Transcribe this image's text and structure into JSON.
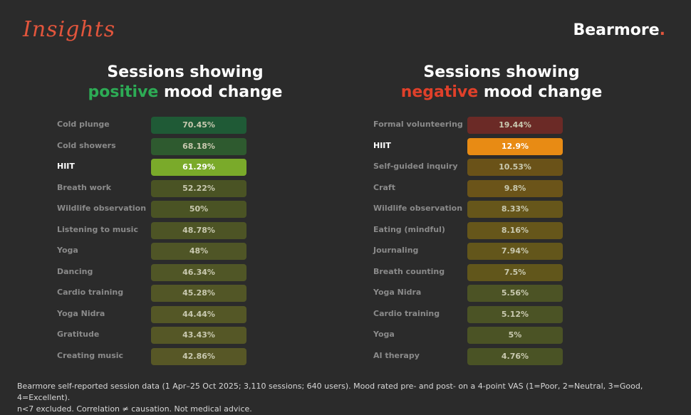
{
  "header": {
    "insights_label": "Insights",
    "brand_name": "Bearmore",
    "brand_dot": "."
  },
  "colors": {
    "background": "#2b2b2b",
    "positive_accent": "#2dab55",
    "negative_accent": "#e0402a",
    "brand_accent": "#e2553c"
  },
  "chart_data": [
    {
      "type": "table",
      "title": {
        "line1": "Sessions showing",
        "accent": "positive",
        "rest": " mood change"
      },
      "highlight": "HIIT",
      "categories": [
        "Cold plunge",
        "Cold showers",
        "HIIT",
        "Breath work",
        "Wildlife observation",
        "Listening to music",
        "Yoga",
        "Dancing",
        "Cardio training",
        "Yoga Nidra",
        "Gratitude",
        "Creating music"
      ],
      "values": [
        70.45,
        68.18,
        61.29,
        52.22,
        50,
        48.78,
        48,
        46.34,
        45.28,
        44.44,
        43.43,
        42.86
      ],
      "value_labels": [
        "70.45%",
        "68.18%",
        "61.29%",
        "52.22%",
        "50%",
        "48.78%",
        "48%",
        "46.34%",
        "45.28%",
        "44.44%",
        "43.43%",
        "42.86%"
      ],
      "cell_colors": [
        "#1f5a36",
        "#2e5a2f",
        "#7aaa2a",
        "#4a5324",
        "#4a5324",
        "#4d5425",
        "#4f5526",
        "#505626",
        "#525626",
        "#545726",
        "#555726",
        "#575726"
      ]
    },
    {
      "type": "table",
      "title": {
        "line1": "Sessions showing",
        "accent": "negative",
        "rest": " mood change"
      },
      "highlight": "HIIT",
      "categories": [
        "Formal volunteering",
        "HIIT",
        "Self-guided inquiry",
        "Craft",
        "Wildlife observation",
        "Eating (mindful)",
        "Journaling",
        "Breath counting",
        "Yoga Nidra",
        "Cardio training",
        "Yoga",
        "AI therapy"
      ],
      "values": [
        19.44,
        12.9,
        10.53,
        9.8,
        8.33,
        8.16,
        7.94,
        7.5,
        5.56,
        5.12,
        5,
        4.76
      ],
      "value_labels": [
        "19.44%",
        "12.9%",
        "10.53%",
        "9.8%",
        "8.33%",
        "8.16%",
        "7.94%",
        "7.5%",
        "5.56%",
        "5.12%",
        "5%",
        "4.76%"
      ],
      "cell_colors": [
        "#6b2a26",
        "#e88b14",
        "#6a5218",
        "#6b5419",
        "#66561a",
        "#66561a",
        "#63561b",
        "#61561b",
        "#4c5325",
        "#4b5325",
        "#4b5325",
        "#4a5325"
      ]
    }
  ],
  "footnote": {
    "line1": "Bearmore self-reported session data (1 Apr–25 Oct 2025; 3,110 sessions; 640 users). Mood rated pre- and post- on a 4-point VAS (1=Poor, 2=Neutral, 3=Good, 4=Excellent).",
    "line2": "n<7 excluded. Correlation ≠ causation. Not medical advice."
  }
}
